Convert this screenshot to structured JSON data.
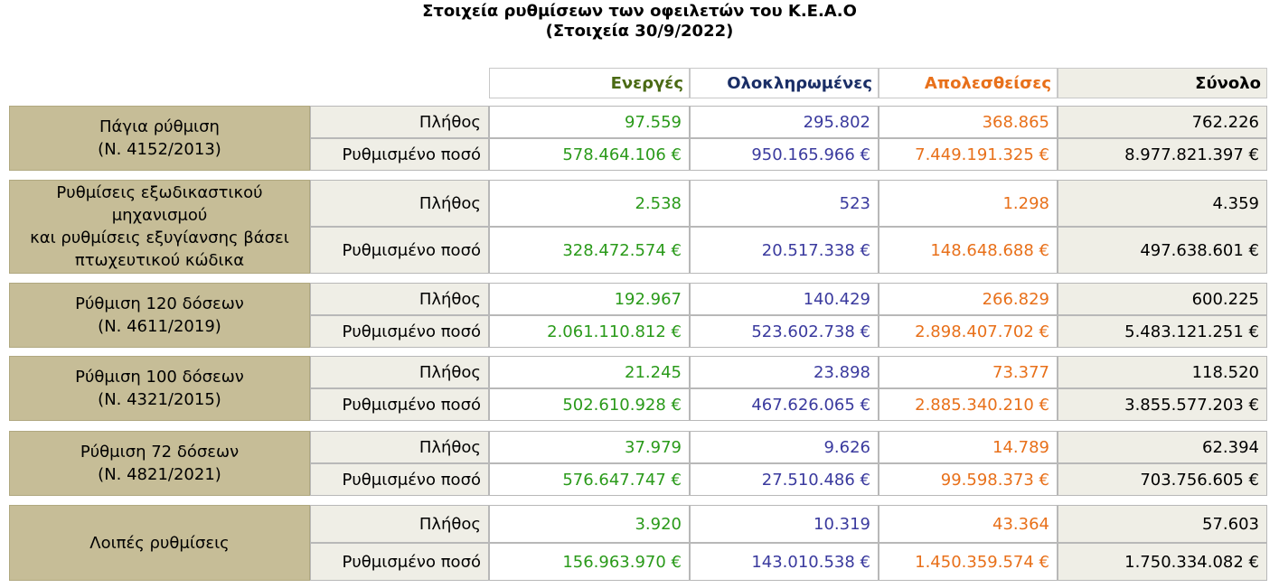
{
  "title": {
    "line1": "Στοιχεία ρυθμίσεων των οφειλετών του Κ.Ε.Α.Ο",
    "line2": "(Στοιχεία 30/9/2022)"
  },
  "columns": {
    "active": "Ενεργές",
    "completed": "Ολοκληρωμένες",
    "lost": "Απολεσθείσες",
    "total": "Σύνολο"
  },
  "colors": {
    "active": "#2a9a1a",
    "completed": "#3a3a9e",
    "lost": "#e8701a",
    "total": "#000000",
    "group_bg": "#c6bd97",
    "label_bg": "#efeee6"
  },
  "row_labels": {
    "count": "Πλήθος",
    "amount": "Ρυθμισμένο ποσό"
  },
  "groups": [
    {
      "label_lines": [
        "Πάγια ρύθμιση",
        "(Ν. 4152/2013)"
      ],
      "count": {
        "active": "97.559",
        "completed": "295.802",
        "lost": "368.865",
        "total": "762.226"
      },
      "amount": {
        "active": "578.464.106 €",
        "completed": "950.165.966 €",
        "lost": "7.449.191.325 €",
        "total": "8.977.821.397 €"
      }
    },
    {
      "label_lines": [
        "Ρυθμίσεις εξωδικαστικού",
        "μηχανισμού",
        "και ρυθμίσεις εξυγίανσης βάσει",
        "πτωχευτικού κώδικα"
      ],
      "count": {
        "active": "2.538",
        "completed": "523",
        "lost": "1.298",
        "total": "4.359"
      },
      "amount": {
        "active": "328.472.574 €",
        "completed": "20.517.338 €",
        "lost": "148.648.688 €",
        "total": "497.638.601 €"
      }
    },
    {
      "label_lines": [
        "Ρύθμιση 120 δόσεων",
        "(Ν. 4611/2019)"
      ],
      "count": {
        "active": "192.967",
        "completed": "140.429",
        "lost": "266.829",
        "total": "600.225"
      },
      "amount": {
        "active": "2.061.110.812 €",
        "completed": "523.602.738 €",
        "lost": "2.898.407.702 €",
        "total": "5.483.121.251 €"
      }
    },
    {
      "label_lines": [
        "Ρύθμιση 100 δόσεων",
        "(Ν. 4321/2015)"
      ],
      "count": {
        "active": "21.245",
        "completed": "23.898",
        "lost": "73.377",
        "total": "118.520"
      },
      "amount": {
        "active": "502.610.928 €",
        "completed": "467.626.065 €",
        "lost": "2.885.340.210 €",
        "total": "3.855.577.203 €"
      }
    },
    {
      "label_lines": [
        "Ρύθμιση 72 δόσεων",
        "(Ν. 4821/2021)"
      ],
      "count": {
        "active": "37.979",
        "completed": "9.626",
        "lost": "14.789",
        "total": "62.394"
      },
      "amount": {
        "active": "576.647.747 €",
        "completed": "27.510.486 €",
        "lost": "99.598.373 €",
        "total": "703.756.605 €"
      }
    },
    {
      "label_lines": [
        "Λοιπές ρυθμίσεις"
      ],
      "count": {
        "active": "3.920",
        "completed": "10.319",
        "lost": "43.364",
        "total": "57.603"
      },
      "amount": {
        "active": "156.963.970 €",
        "completed": "143.010.538 €",
        "lost": "1.450.359.574 €",
        "total": "1.750.334.082 €"
      }
    }
  ]
}
